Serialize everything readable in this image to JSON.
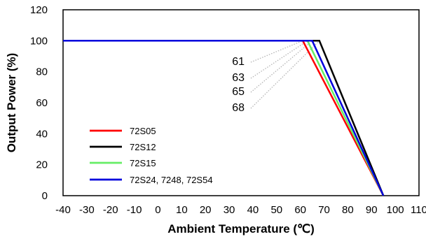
{
  "chart_data": {
    "type": "line",
    "title": "",
    "xlabel": "Ambient Temperature (℃)",
    "ylabel": "Output Power (%)",
    "xlim": [
      -40,
      110
    ],
    "ylim": [
      0,
      120
    ],
    "xticks": [
      -40,
      -30,
      -20,
      -10,
      0,
      10,
      20,
      30,
      40,
      50,
      60,
      70,
      80,
      90,
      100,
      110
    ],
    "yticks": [
      0,
      20,
      40,
      60,
      80,
      100,
      120
    ],
    "grid": false,
    "legend_position": "bottom-left",
    "series": [
      {
        "name": "72S05",
        "color": "#ff0000",
        "x": [
          -40,
          61,
          95
        ],
        "y": [
          100,
          100,
          0
        ]
      },
      {
        "name": "72S12",
        "color": "#000000",
        "x": [
          -40,
          68,
          95
        ],
        "y": [
          100,
          100,
          0
        ]
      },
      {
        "name": "72S15",
        "color": "#66ee66",
        "x": [
          -40,
          63,
          95
        ],
        "y": [
          100,
          100,
          0
        ]
      },
      {
        "name": "72S24, 7248, 72S54",
        "color": "#0000dd",
        "x": [
          -40,
          65,
          95
        ],
        "y": [
          100,
          100,
          0
        ]
      }
    ],
    "annotations": [
      {
        "text": "61",
        "x": 61,
        "y": 100
      },
      {
        "text": "63",
        "x": 63,
        "y": 100
      },
      {
        "text": "65",
        "x": 65,
        "y": 100
      },
      {
        "text": "68",
        "x": 68,
        "y": 100
      }
    ]
  }
}
